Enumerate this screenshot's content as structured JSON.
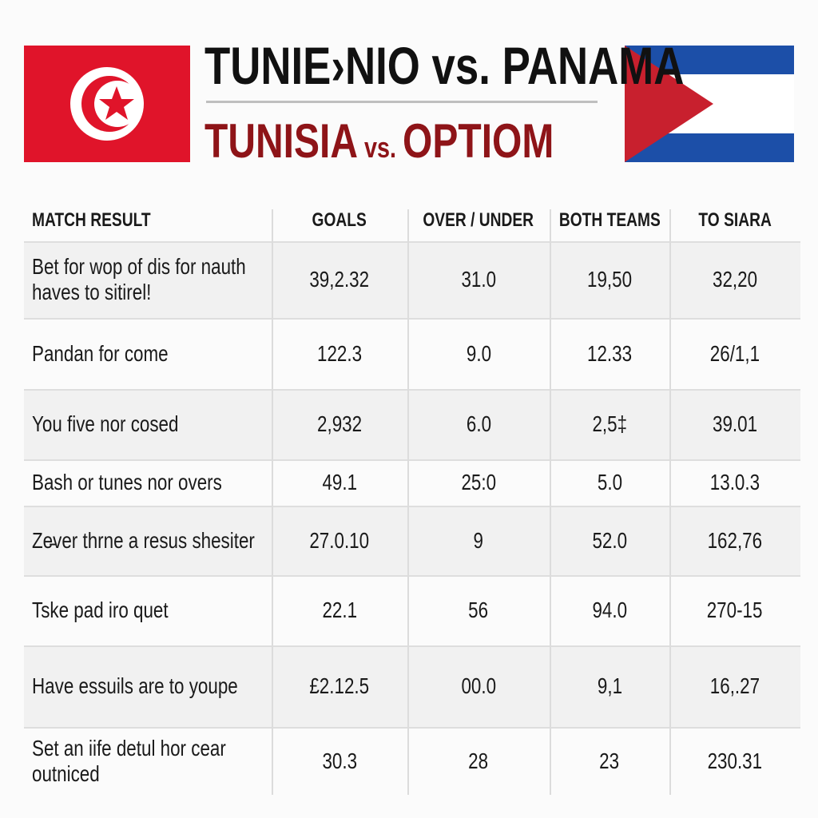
{
  "header": {
    "title": "TUNIE›NIO vs. PANAMA",
    "subtitle": {
      "left": "TUNISIA",
      "vs": "vs.",
      "right": "OPTIOM"
    }
  },
  "table": {
    "headers": [
      "MATCH RESULT",
      "GOALS",
      "OVER / UNDER",
      "BOTH TEAMS",
      "TO SIARA"
    ],
    "rows": [
      [
        [
          "Bet for wop of dis for nauth",
          "haves to sitirel!"
        ],
        "39,2.32",
        "31.0",
        "19,50",
        "32,20"
      ],
      [
        [
          "Pandan for come"
        ],
        "122.3",
        "9.0",
        "12.33",
        "26/1,1"
      ],
      [
        [
          "You five nor cosed"
        ],
        "2,932",
        "6.0",
        "2,5‡",
        "39.01"
      ],
      [
        [
          "Bash or tunes nor overs"
        ],
        "49.1",
        "25:0",
        "5.0",
        "13.0.3"
      ],
      [
        [
          "Ze̵ver thrne a resus shesiter"
        ],
        "27.0.10",
        "9",
        "52.0",
        "162,76"
      ],
      [
        [
          "Tske pad iro quet"
        ],
        "22.1",
        "56",
        "94.0",
        "270-15"
      ],
      [
        [
          "Have essuils are to youpe"
        ],
        "£2.12.5",
        "00.0",
        "9,1",
        "16,.27"
      ],
      [
        [
          "Set an iife detul hor cear",
          "outniced"
        ],
        "30.3",
        "28",
        "23",
        "230.31"
      ]
    ]
  }
}
